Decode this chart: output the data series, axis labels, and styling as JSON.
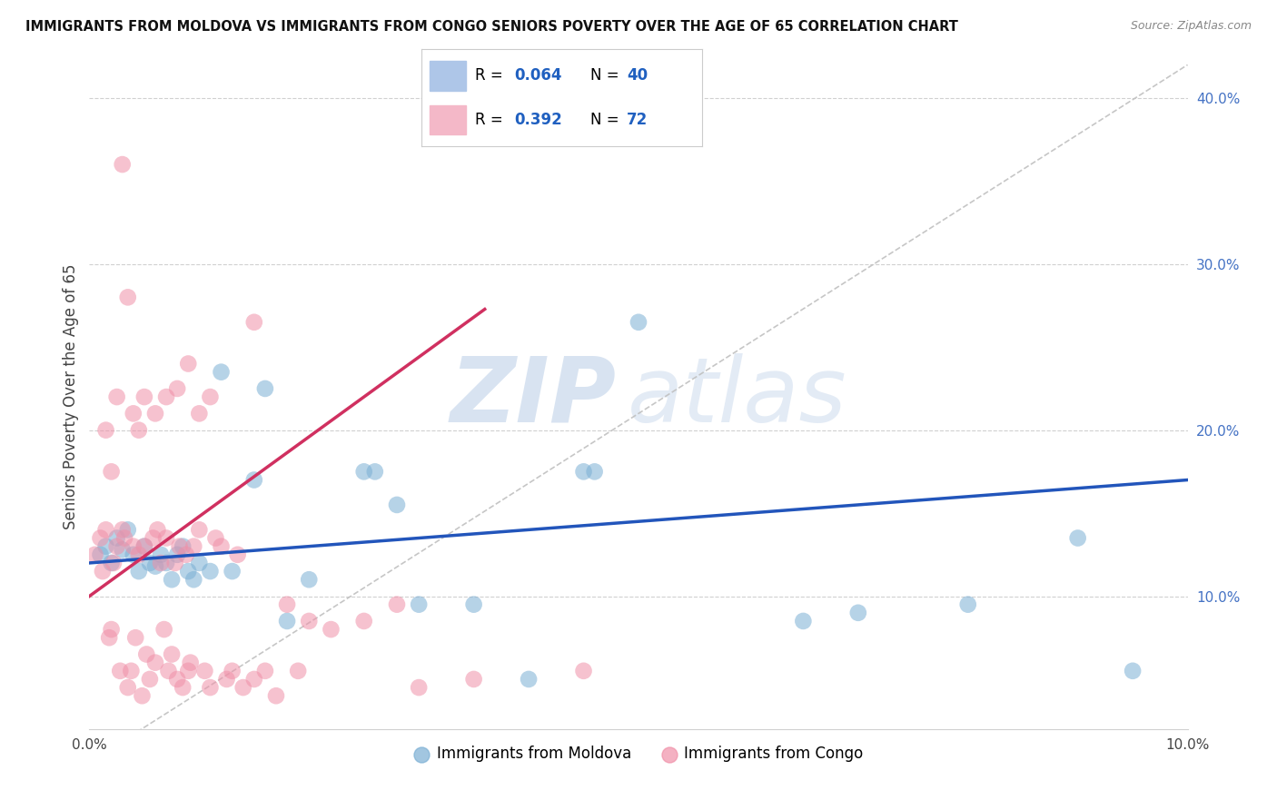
{
  "title": "IMMIGRANTS FROM MOLDOVA VS IMMIGRANTS FROM CONGO SENIORS POVERTY OVER THE AGE OF 65 CORRELATION CHART",
  "source": "Source: ZipAtlas.com",
  "ylabel": "Seniors Poverty Over the Age of 65",
  "watermark_zip": "ZIP",
  "watermark_atlas": "atlas",
  "xlim": [
    0.0,
    10.0
  ],
  "ylim": [
    2.0,
    42.0
  ],
  "yticks": [
    10,
    20,
    30,
    40
  ],
  "ytick_labels": [
    "10.0%",
    "20.0%",
    "30.0%",
    "40.0%"
  ],
  "moldova_color": "#7bafd4",
  "congo_color": "#f090a8",
  "moldova_line_color": "#2255bb",
  "congo_line_color": "#d03060",
  "moldova_R": 0.064,
  "moldova_N": 40,
  "congo_R": 0.392,
  "congo_N": 72,
  "moldova_points": [
    [
      0.1,
      12.5
    ],
    [
      0.15,
      13.0
    ],
    [
      0.2,
      12.0
    ],
    [
      0.25,
      13.5
    ],
    [
      0.3,
      12.8
    ],
    [
      0.35,
      14.0
    ],
    [
      0.4,
      12.5
    ],
    [
      0.45,
      11.5
    ],
    [
      0.5,
      13.0
    ],
    [
      0.55,
      12.0
    ],
    [
      0.6,
      11.8
    ],
    [
      0.65,
      12.5
    ],
    [
      0.7,
      12.0
    ],
    [
      0.75,
      11.0
    ],
    [
      0.8,
      12.5
    ],
    [
      0.85,
      13.0
    ],
    [
      0.9,
      11.5
    ],
    [
      0.95,
      11.0
    ],
    [
      1.0,
      12.0
    ],
    [
      1.1,
      11.5
    ],
    [
      1.2,
      23.5
    ],
    [
      1.3,
      11.5
    ],
    [
      1.5,
      17.0
    ],
    [
      1.6,
      22.5
    ],
    [
      1.8,
      8.5
    ],
    [
      2.0,
      11.0
    ],
    [
      2.5,
      17.5
    ],
    [
      2.6,
      17.5
    ],
    [
      2.8,
      15.5
    ],
    [
      3.0,
      9.5
    ],
    [
      3.5,
      9.5
    ],
    [
      4.5,
      17.5
    ],
    [
      4.6,
      17.5
    ],
    [
      5.0,
      26.5
    ],
    [
      6.5,
      8.5
    ],
    [
      7.0,
      9.0
    ],
    [
      8.0,
      9.5
    ],
    [
      9.0,
      13.5
    ],
    [
      9.5,
      5.5
    ],
    [
      4.0,
      5.0
    ]
  ],
  "congo_points": [
    [
      0.05,
      12.5
    ],
    [
      0.1,
      13.5
    ],
    [
      0.12,
      11.5
    ],
    [
      0.15,
      14.0
    ],
    [
      0.18,
      7.5
    ],
    [
      0.2,
      8.0
    ],
    [
      0.22,
      12.0
    ],
    [
      0.25,
      13.0
    ],
    [
      0.28,
      5.5
    ],
    [
      0.3,
      14.0
    ],
    [
      0.32,
      13.5
    ],
    [
      0.35,
      4.5
    ],
    [
      0.38,
      5.5
    ],
    [
      0.4,
      13.0
    ],
    [
      0.42,
      7.5
    ],
    [
      0.45,
      12.5
    ],
    [
      0.48,
      4.0
    ],
    [
      0.5,
      13.0
    ],
    [
      0.52,
      6.5
    ],
    [
      0.55,
      5.0
    ],
    [
      0.58,
      13.5
    ],
    [
      0.6,
      6.0
    ],
    [
      0.62,
      14.0
    ],
    [
      0.65,
      12.0
    ],
    [
      0.68,
      8.0
    ],
    [
      0.7,
      13.5
    ],
    [
      0.72,
      5.5
    ],
    [
      0.75,
      6.5
    ],
    [
      0.78,
      12.0
    ],
    [
      0.8,
      5.0
    ],
    [
      0.82,
      13.0
    ],
    [
      0.85,
      4.5
    ],
    [
      0.88,
      12.5
    ],
    [
      0.9,
      5.5
    ],
    [
      0.92,
      6.0
    ],
    [
      0.95,
      13.0
    ],
    [
      1.0,
      14.0
    ],
    [
      1.05,
      5.5
    ],
    [
      1.1,
      4.5
    ],
    [
      1.15,
      13.5
    ],
    [
      1.2,
      13.0
    ],
    [
      1.25,
      5.0
    ],
    [
      1.3,
      5.5
    ],
    [
      1.35,
      12.5
    ],
    [
      1.4,
      4.5
    ],
    [
      1.5,
      5.0
    ],
    [
      1.6,
      5.5
    ],
    [
      1.7,
      4.0
    ],
    [
      1.8,
      9.5
    ],
    [
      1.9,
      5.5
    ],
    [
      0.3,
      36.0
    ],
    [
      0.35,
      28.0
    ],
    [
      0.5,
      22.0
    ],
    [
      0.6,
      21.0
    ],
    [
      0.7,
      22.0
    ],
    [
      0.8,
      22.5
    ],
    [
      0.9,
      24.0
    ],
    [
      1.0,
      21.0
    ],
    [
      1.1,
      22.0
    ],
    [
      1.5,
      26.5
    ],
    [
      0.15,
      20.0
    ],
    [
      0.2,
      17.5
    ],
    [
      0.25,
      22.0
    ],
    [
      0.4,
      21.0
    ],
    [
      0.45,
      20.0
    ],
    [
      2.0,
      8.5
    ],
    [
      2.2,
      8.0
    ],
    [
      2.5,
      8.5
    ],
    [
      2.8,
      9.5
    ],
    [
      3.0,
      4.5
    ],
    [
      3.5,
      5.0
    ],
    [
      4.5,
      5.5
    ]
  ]
}
